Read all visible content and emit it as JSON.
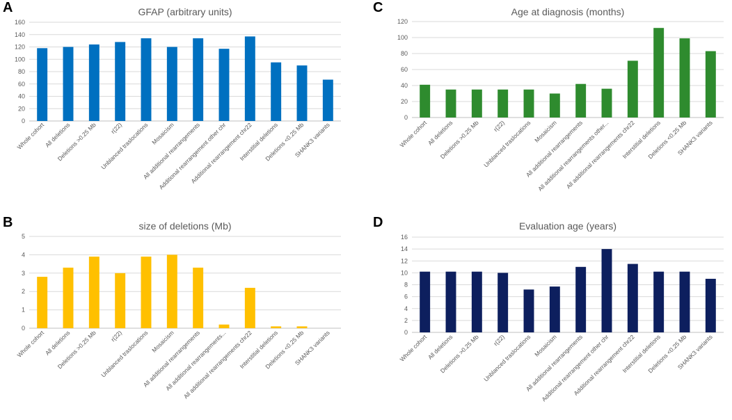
{
  "chart_data": [
    {
      "panel": "A",
      "type": "bar",
      "title": "GFAP (arbitrary units)",
      "color": "#0070C0",
      "ylim": [
        0,
        160
      ],
      "yticks": [
        0,
        20,
        40,
        60,
        80,
        100,
        120,
        140,
        160
      ],
      "categories": [
        "Whole cohort",
        "All deletions",
        "Deletions >0.25 Mb",
        "r(22)",
        "Unblanced traslocations",
        "Mosaicism",
        "All  additional rearrangements",
        "Additional rearrangement other chr",
        "Additional rearrangement chr22",
        "Interstitial deletions",
        "Deletions <0.25 Mb",
        "SHANK3 variants"
      ],
      "values": [
        118,
        120,
        124,
        128,
        134,
        120,
        134,
        117,
        137,
        95,
        90,
        67
      ]
    },
    {
      "panel": "C",
      "type": "bar",
      "title": "Age at diagnosis (months)",
      "color": "#2E8B2E",
      "ylim": [
        0,
        120
      ],
      "yticks": [
        0,
        20,
        40,
        60,
        80,
        100,
        120
      ],
      "categories": [
        "Whole cohort",
        "All deletions",
        "Deletions >0.25 Mb",
        "r(22)",
        "Unblanced traslocations",
        "Mosaicism",
        "All  additional rearrangements",
        "All additional rearrangements other...",
        "All  additional rearrangements chr22",
        "Interstitial deletions",
        "Deletions <0.25 Mb",
        "SHANK3 variants"
      ],
      "values": [
        41,
        35,
        35,
        35,
        35,
        30,
        42,
        36,
        71,
        112,
        99,
        83
      ]
    },
    {
      "panel": "B",
      "type": "bar",
      "title": "size of deletions (Mb)",
      "color": "#FFC000",
      "ylim": [
        0,
        5
      ],
      "yticks": [
        0,
        1,
        2,
        3,
        4,
        5
      ],
      "categories": [
        "Whole cohort",
        "All deletions",
        "Deletions >0.25 Mb",
        "r(22)",
        "Unblanced traslocations",
        "Mosaicism",
        "All  additional rearrangements",
        "All  additional rearrangements...",
        "All  additional rearrangements chr22",
        "Interstitial deletions",
        "Deletions <0.25 Mb",
        "SHANK3 variants"
      ],
      "values": [
        2.8,
        3.3,
        3.9,
        3.0,
        3.9,
        4.0,
        3.3,
        0.2,
        2.2,
        0.1,
        0.1,
        0
      ]
    },
    {
      "panel": "D",
      "type": "bar",
      "title": "Evaluation age (years)",
      "color": "#0D1F5E",
      "ylim": [
        0,
        16
      ],
      "yticks": [
        0,
        2,
        4,
        6,
        8,
        10,
        12,
        14,
        16
      ],
      "categories": [
        "Whole cohort",
        "All deletions",
        "Deletions >0.25 Mb",
        "r(22)",
        "Unblanced traslocations",
        "Mosaicism",
        "All  additional rearrangements",
        "Additional rearrangement other chr",
        "Additional rearrangement chr22",
        "Interstitial deletions",
        "Deletions <0.25 Mb",
        "SHANK3 variants"
      ],
      "values": [
        10.2,
        10.2,
        10.2,
        10.0,
        7.2,
        7.7,
        11.0,
        14.0,
        11.5,
        10.2,
        10.2,
        9.0
      ]
    }
  ]
}
